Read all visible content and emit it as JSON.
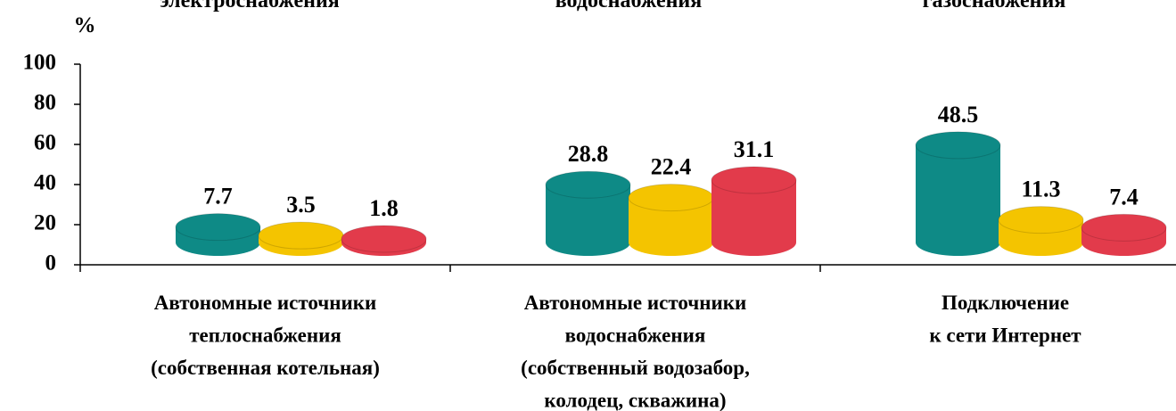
{
  "chart_data": {
    "type": "bar",
    "top_labels": [
      "электроснабжения",
      "водоснабжения",
      "газоснабжения"
    ],
    "y_label": "%",
    "categories": [
      "Автономные источники\nтеплоснабжения\n(собственная котельная)",
      "Автономные источники\nводоснабжения\n(собственный водозабор,\nколодец, скважина)",
      "Подключение\nк сети Интернет"
    ],
    "series": [
      {
        "color": "#0e8a86",
        "values": [
          7.7,
          28.8,
          48.5
        ]
      },
      {
        "color": "#f4c400",
        "values": [
          3.5,
          22.4,
          11.3
        ]
      },
      {
        "color": "#e23b4b",
        "values": [
          1.8,
          31.1,
          7.4
        ]
      }
    ],
    "ylim": [
      0,
      100
    ],
    "yticks": [
      0,
      20,
      40,
      60,
      80,
      100
    ]
  }
}
